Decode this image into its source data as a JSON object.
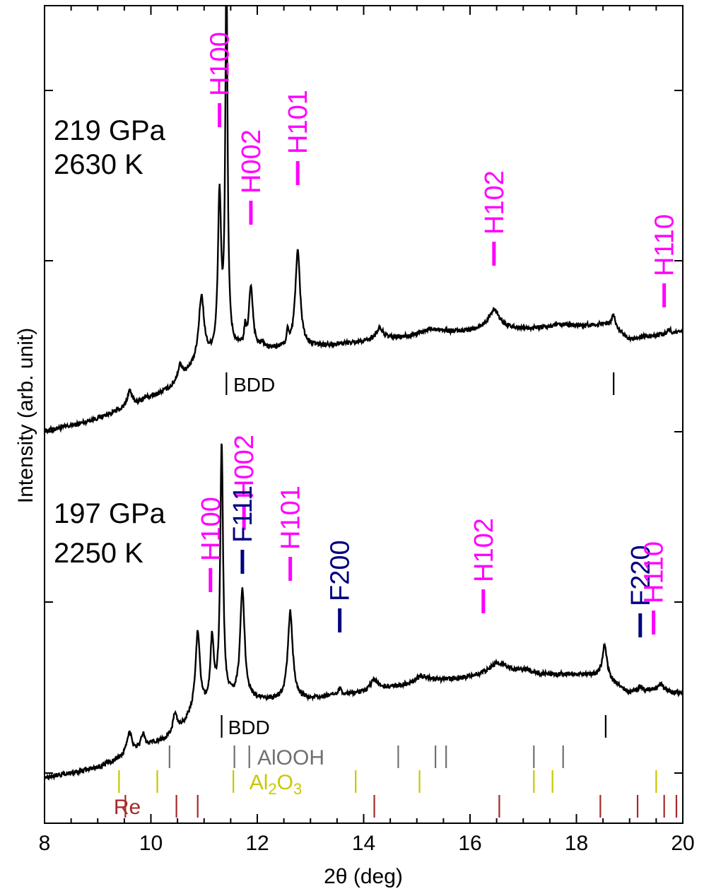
{
  "chart_data": {
    "type": "line",
    "xlabel": "2θ (deg)",
    "ylabel": "Intensity (arb. unit)",
    "xlim": [
      8,
      20
    ],
    "x_ticks": [
      8,
      10,
      12,
      14,
      16,
      18,
      20
    ],
    "x_tick_labels": [
      "8",
      "10",
      "12",
      "14",
      "16",
      "18",
      "20"
    ],
    "colors": {
      "hcp": "#ff00ff",
      "fcc": "#000080",
      "bdd": "#000000",
      "alooh": "#707070",
      "al2o3": "#c8c800",
      "re": "#a52a2a",
      "trace": "#000000"
    },
    "patterns": [
      {
        "name": "upper",
        "conditions": [
          "219 GPa",
          "2630 K"
        ],
        "background": [
          [
            8.0,
            0.0
          ],
          [
            8.6,
            0.1
          ],
          [
            9.0,
            0.2
          ],
          [
            9.6,
            0.38
          ],
          [
            10.0,
            0.52
          ],
          [
            10.4,
            0.68
          ],
          [
            10.9,
            1.05
          ],
          [
            11.5,
            1.28
          ],
          [
            12.2,
            1.28
          ],
          [
            13.0,
            1.32
          ],
          [
            14.0,
            1.4
          ],
          [
            15.0,
            1.48
          ],
          [
            16.0,
            1.56
          ],
          [
            17.0,
            1.6
          ],
          [
            18.0,
            1.65
          ],
          [
            18.6,
            1.68
          ],
          [
            19.0,
            1.45
          ],
          [
            19.5,
            1.5
          ],
          [
            20.0,
            1.55
          ]
        ],
        "peaks": [
          {
            "x": 9.6,
            "h": 0.26,
            "w": 0.05
          },
          {
            "x": 9.9,
            "h": 0.04,
            "w": 0.05
          },
          {
            "x": 10.55,
            "h": 0.22,
            "w": 0.06
          },
          {
            "x": 10.95,
            "h": 1.02,
            "w": 0.06
          },
          {
            "x": 11.29,
            "h": 2.45,
            "w": 0.035
          },
          {
            "x": 11.42,
            "h": 6.0,
            "w": 0.025
          },
          {
            "x": 11.77,
            "h": 0.25,
            "w": 0.02
          },
          {
            "x": 11.88,
            "h": 0.98,
            "w": 0.045
          },
          {
            "x": 12.1,
            "h": 0.08,
            "w": 0.03
          },
          {
            "x": 12.57,
            "h": 0.22,
            "w": 0.02
          },
          {
            "x": 12.76,
            "h": 1.52,
            "w": 0.055
          },
          {
            "x": 14.3,
            "h": 0.18,
            "w": 0.09
          },
          {
            "x": 15.3,
            "h": 0.1,
            "w": 0.25
          },
          {
            "x": 16.45,
            "h": 0.32,
            "w": 0.14
          },
          {
            "x": 17.7,
            "h": 0.03,
            "w": 0.2
          },
          {
            "x": 18.7,
            "h": 0.2,
            "w": 0.04
          },
          {
            "x": 19.75,
            "h": 0.06,
            "w": 0.06
          }
        ],
        "peak_labels": [
          {
            "text": "H100",
            "x": 11.29,
            "phase": "hcp"
          },
          {
            "text": "H002",
            "x": 11.88,
            "phase": "hcp"
          },
          {
            "text": "H101",
            "x": 12.76,
            "phase": "hcp"
          },
          {
            "text": "H102",
            "x": 16.45,
            "phase": "hcp"
          },
          {
            "text": "H110",
            "x": 19.65,
            "phase": "hcp"
          }
        ],
        "reference_rows": [
          {
            "name": "BDD",
            "phase": "bdd",
            "label_x": 11.55,
            "positions": [
              11.42,
              18.7
            ]
          }
        ]
      },
      {
        "name": "lower",
        "conditions": [
          "197 GPa",
          "2250 K"
        ],
        "background": [
          [
            8.0,
            0.0
          ],
          [
            8.6,
            0.08
          ],
          [
            9.0,
            0.15
          ],
          [
            9.6,
            0.35
          ],
          [
            10.0,
            0.5
          ],
          [
            10.4,
            0.62
          ],
          [
            10.8,
            0.95
          ],
          [
            11.5,
            1.18
          ],
          [
            12.2,
            1.18
          ],
          [
            13.0,
            1.2
          ],
          [
            14.0,
            1.3
          ],
          [
            15.0,
            1.44
          ],
          [
            16.0,
            1.52
          ],
          [
            17.0,
            1.55
          ],
          [
            18.0,
            1.58
          ],
          [
            18.5,
            1.55
          ],
          [
            19.0,
            1.3
          ],
          [
            19.5,
            1.35
          ],
          [
            20.0,
            1.28
          ]
        ],
        "peaks": [
          {
            "x": 9.6,
            "h": 0.33,
            "w": 0.06
          },
          {
            "x": 9.85,
            "h": 0.22,
            "w": 0.04
          },
          {
            "x": 10.45,
            "h": 0.3,
            "w": 0.05
          },
          {
            "x": 10.88,
            "h": 1.22,
            "w": 0.05
          },
          {
            "x": 11.15,
            "h": 1.0,
            "w": 0.04
          },
          {
            "x": 11.33,
            "h": 3.95,
            "w": 0.032
          },
          {
            "x": 11.72,
            "h": 1.68,
            "w": 0.05
          },
          {
            "x": 12.62,
            "h": 1.35,
            "w": 0.055
          },
          {
            "x": 13.55,
            "h": 0.1,
            "w": 0.05
          },
          {
            "x": 14.2,
            "h": 0.16,
            "w": 0.09
          },
          {
            "x": 15.1,
            "h": 0.1,
            "w": 0.15
          },
          {
            "x": 16.55,
            "h": 0.22,
            "w": 0.25
          },
          {
            "x": 17.05,
            "h": 0.07,
            "w": 0.15
          },
          {
            "x": 18.53,
            "h": 0.5,
            "w": 0.05
          },
          {
            "x": 19.2,
            "h": 0.07,
            "w": 0.05
          },
          {
            "x": 19.6,
            "h": 0.1,
            "w": 0.05
          }
        ],
        "peak_labels": [
          {
            "text": "H100",
            "x": 11.12,
            "phase": "hcp"
          },
          {
            "text": "H002",
            "x": 11.75,
            "phase": "hcp"
          },
          {
            "text": "F111",
            "x": 11.72,
            "phase": "fcc"
          },
          {
            "text": "H101",
            "x": 12.62,
            "phase": "hcp"
          },
          {
            "text": "F200",
            "x": 13.55,
            "phase": "fcc"
          },
          {
            "text": "H102",
            "x": 16.25,
            "phase": "hcp"
          },
          {
            "text": "F220",
            "x": 19.2,
            "phase": "fcc"
          },
          {
            "text": "H110",
            "x": 19.45,
            "phase": "hcp"
          }
        ],
        "reference_rows": [
          {
            "name": "BDD",
            "phase": "bdd",
            "label_x": 11.45,
            "positions": [
              11.33,
              18.55
            ]
          },
          {
            "name": "AlOOH",
            "phase": "alooh",
            "label_x": 12.0,
            "positions": [
              10.35,
              11.57,
              11.85,
              14.65,
              15.35,
              15.55,
              17.2,
              17.75
            ]
          },
          {
            "name": "Al2O3",
            "phase": "al2o3",
            "label_x": 11.85,
            "positions": [
              9.4,
              10.12,
              11.55,
              13.85,
              15.05,
              17.2,
              17.55,
              19.5
            ]
          },
          {
            "name": "Re",
            "phase": "re",
            "label_x": 9.3,
            "positions": [
              9.52,
              10.48,
              10.88,
              14.2,
              16.55,
              18.45,
              19.15,
              19.65,
              19.88
            ]
          }
        ]
      }
    ]
  }
}
